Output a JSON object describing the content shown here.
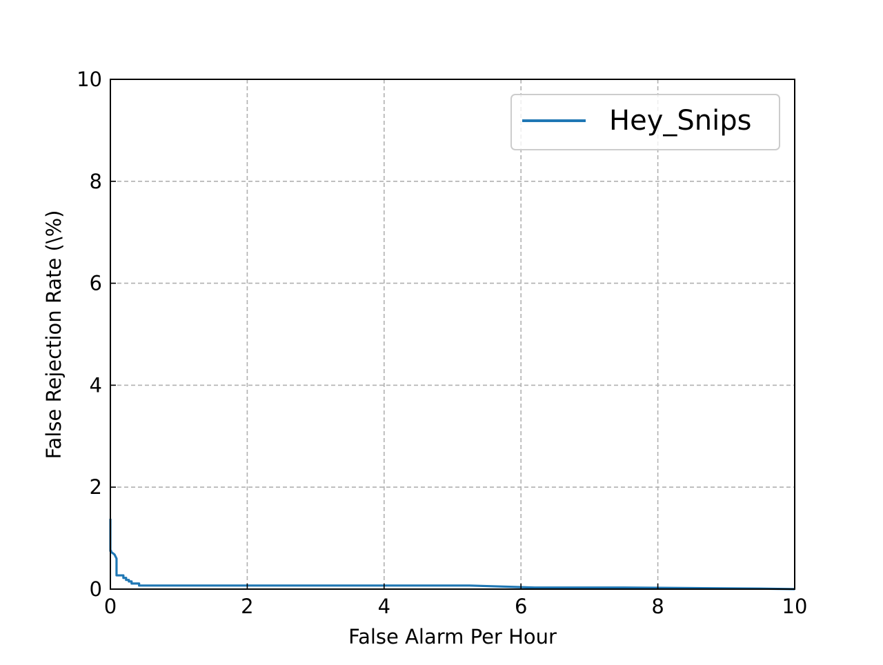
{
  "chart_data": {
    "type": "line",
    "xlabel": "False Alarm Per Hour",
    "ylabel": "False Rejection Rate (\\%)",
    "xlim": [
      0,
      10
    ],
    "ylim": [
      0,
      10
    ],
    "xticks": [
      "0",
      "2",
      "4",
      "6",
      "8",
      "10"
    ],
    "yticks": [
      "0",
      "2",
      "4",
      "6",
      "8",
      "10"
    ],
    "grid": true,
    "legend_position": "top-right",
    "series": [
      {
        "name": "Hey_Snips",
        "color": "#1f77b4",
        "x": [
          0.0,
          0.0,
          0.01,
          0.01,
          0.06,
          0.09,
          0.09,
          0.19,
          0.19,
          0.23,
          0.23,
          0.27,
          0.27,
          0.31,
          0.31,
          0.42,
          0.42,
          1.5,
          3.0,
          4.5,
          5.25,
          6.2,
          7.5,
          8.5,
          9.5,
          10.0
        ],
        "y": [
          1.38,
          0.75,
          0.75,
          0.73,
          0.68,
          0.6,
          0.27,
          0.27,
          0.22,
          0.22,
          0.18,
          0.18,
          0.15,
          0.15,
          0.11,
          0.11,
          0.07,
          0.07,
          0.07,
          0.07,
          0.07,
          0.03,
          0.03,
          0.02,
          0.01,
          0.0
        ]
      }
    ]
  }
}
